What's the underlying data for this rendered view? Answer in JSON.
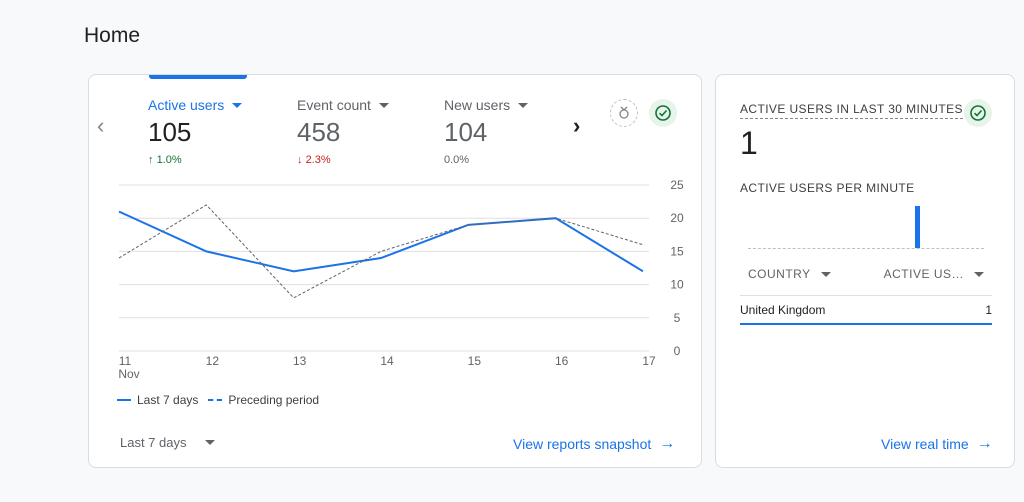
{
  "page": {
    "title": "Home"
  },
  "metrics": [
    {
      "label": "Active users",
      "value": "105",
      "delta": "1.0%",
      "direction": "up"
    },
    {
      "label": "Event count",
      "value": "458",
      "delta": "2.3%",
      "direction": "down"
    },
    {
      "label": "New users",
      "value": "104",
      "delta": "0.0%",
      "direction": "flat"
    }
  ],
  "chart_data": {
    "type": "line",
    "x": [
      "11",
      "12",
      "13",
      "14",
      "15",
      "16",
      "17"
    ],
    "x_sublabel_first": "Nov",
    "y_ticks": [
      0,
      5,
      10,
      15,
      20,
      25
    ],
    "ylim": [
      0,
      25
    ],
    "series": [
      {
        "name": "Last 7 days",
        "values": [
          21,
          15,
          12,
          14,
          19,
          20,
          12
        ],
        "style": "solid"
      },
      {
        "name": "Preceding period",
        "values": [
          14,
          22,
          8,
          15,
          19,
          20,
          16
        ],
        "style": "dashed"
      }
    ],
    "colors": {
      "line": "#1a73e8",
      "dashed": "#5f6368",
      "grid": "#e0e0e0"
    }
  },
  "legend": {
    "current": "Last 7 days",
    "previous": "Preceding period"
  },
  "footer": {
    "range_label": "Last 7 days",
    "snapshot_link": "View reports snapshot"
  },
  "realtime": {
    "title": "ACTIVE USERS IN LAST 30 MINUTES",
    "value": "1",
    "subtitle": "ACTIVE USERS PER MINUTE",
    "per_minute": [
      0,
      0,
      0,
      0,
      0,
      0,
      0,
      0,
      0,
      0,
      0,
      0,
      0,
      0,
      0,
      0,
      0,
      0,
      0,
      0,
      0,
      1,
      0,
      0,
      0,
      0,
      0,
      0,
      0,
      0
    ],
    "table": {
      "col_country": "COUNTRY",
      "col_active": "ACTIVE US…",
      "rows": [
        {
          "country": "United Kingdom",
          "value": "1"
        }
      ]
    },
    "link": "View real time"
  },
  "icons": {
    "prev": "chevron-left-icon",
    "next": "chevron-right-icon",
    "insights": "insights-icon",
    "check": "check-circle-icon",
    "arrow": "arrow-right-icon"
  }
}
